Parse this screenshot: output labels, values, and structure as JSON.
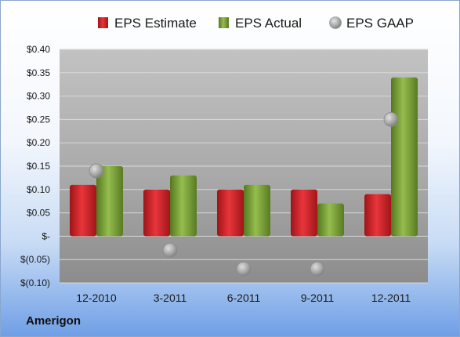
{
  "company": "Amerigon",
  "colors": {
    "estimate": "#d2262b",
    "actual": "#7aa23a",
    "gaap": "#a9a9a9"
  },
  "chart_data": {
    "type": "bar",
    "categories": [
      "12-2010",
      "3-2011",
      "6-2011",
      "9-2011",
      "12-2011"
    ],
    "series": [
      {
        "name": "EPS Estimate",
        "kind": "bar",
        "values": [
          0.11,
          0.1,
          0.1,
          0.1,
          0.09
        ]
      },
      {
        "name": "EPS Actual",
        "kind": "bar",
        "values": [
          0.15,
          0.13,
          0.11,
          0.07,
          0.34
        ]
      },
      {
        "name": "EPS GAAP",
        "kind": "marker",
        "values": [
          0.14,
          -0.03,
          -0.07,
          -0.07,
          0.25
        ]
      }
    ],
    "ylim": [
      -0.1,
      0.4
    ],
    "yticks": [
      0.4,
      0.35,
      0.3,
      0.25,
      0.2,
      0.15,
      0.1,
      0.05,
      0,
      -0.05,
      -0.1
    ],
    "ytick_labels": [
      "$0.40",
      "$0.35",
      "$0.30",
      "$0.25",
      "$0.20",
      "$0.15",
      "$0.10",
      "$0.05",
      "$-",
      "$(0.05)",
      "$(0.10)"
    ],
    "legend_position": "top",
    "grid": true
  }
}
